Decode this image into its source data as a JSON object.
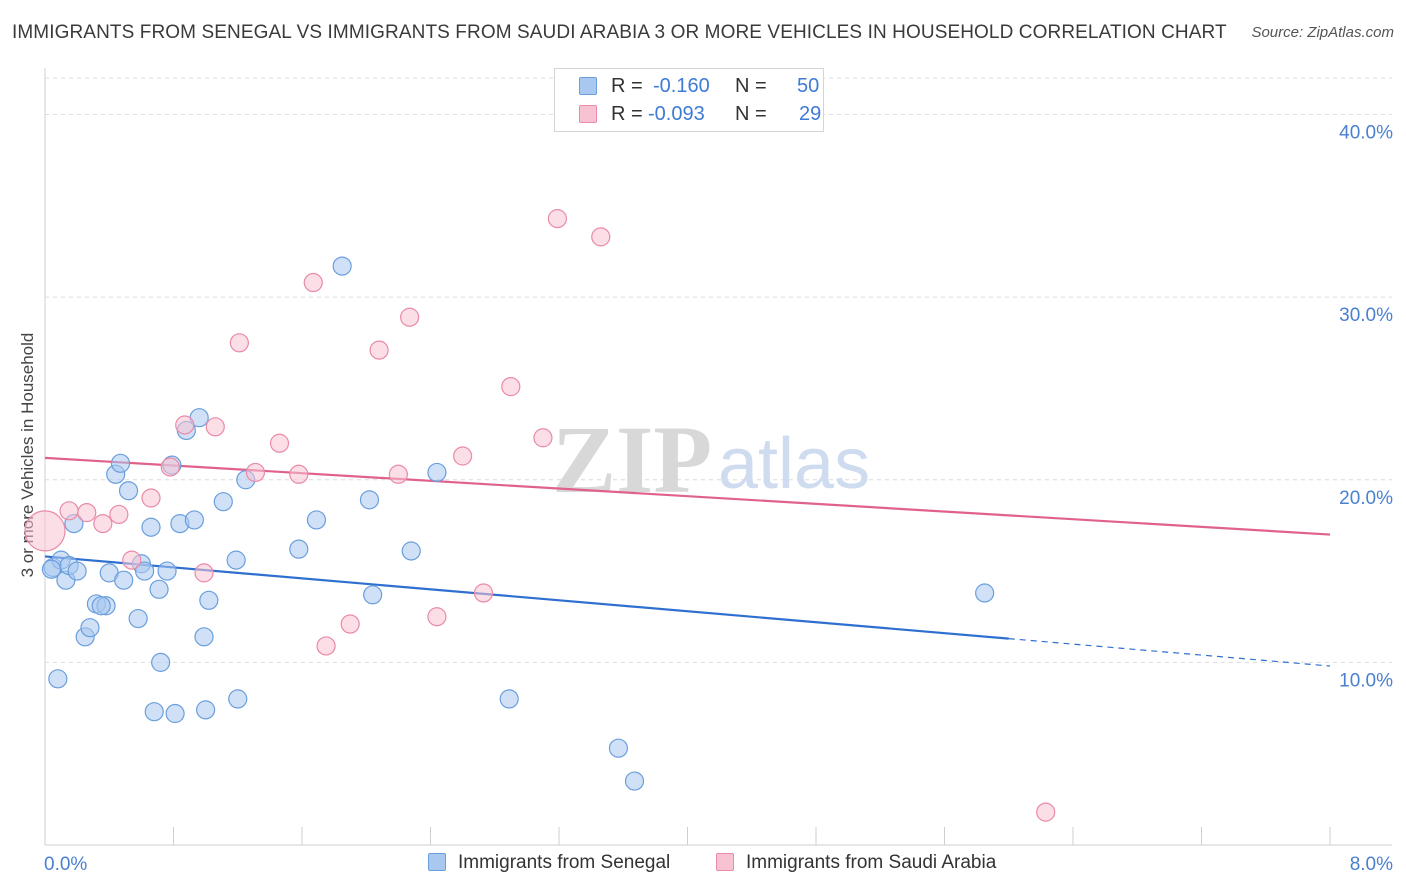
{
  "header": {
    "title": "IMMIGRANTS FROM SENEGAL VS IMMIGRANTS FROM SAUDI ARABIA 3 OR MORE VEHICLES IN HOUSEHOLD CORRELATION CHART",
    "source": "Source: ZipAtlas.com"
  },
  "legend": {
    "rows": [
      {
        "r_label": "R =",
        "r_value": "-0.160",
        "n_label": "N =",
        "n_value": "50"
      },
      {
        "r_label": "R =",
        "r_value": "-0.093",
        "n_label": "N =",
        "n_value": "29"
      }
    ]
  },
  "watermark": {
    "zip": "ZIP",
    "atlas": "atlas"
  },
  "chart_data": {
    "type": "scatter",
    "title": "IMMIGRANTS FROM SENEGAL VS IMMIGRANTS FROM SAUDI ARABIA 3 OR MORE VEHICLES IN HOUSEHOLD CORRELATION CHART",
    "xlabel": "",
    "ylabel": "3 or more Vehicles in Household",
    "xlim": [
      0,
      8
    ],
    "ylim": [
      0,
      42
    ],
    "x_tick_labels": [
      "0.0%",
      "8.0%"
    ],
    "y_ticks": [
      10,
      20,
      30,
      40
    ],
    "y_tick_labels": [
      "10.0%",
      "20.0%",
      "30.0%",
      "40.0%"
    ],
    "grid": true,
    "legend_position": "bottom",
    "series": [
      {
        "name": "Immigrants from Senegal",
        "color": "#a9c8f0",
        "stroke": "#6a9fdc",
        "line_color": "#2f6fd0",
        "trend": {
          "x": [
            0,
            6.0
          ],
          "y": [
            15.8,
            11.3
          ]
        },
        "trend_dashed": {
          "x": [
            6.0,
            8.0
          ],
          "y": [
            11.3,
            9.8
          ]
        },
        "points": [
          {
            "x": 0.05,
            "y": 15.2
          },
          {
            "x": 0.1,
            "y": 15.6
          },
          {
            "x": 0.13,
            "y": 14.5
          },
          {
            "x": 0.15,
            "y": 15.3
          },
          {
            "x": 0.2,
            "y": 15.0
          },
          {
            "x": 0.18,
            "y": 17.6
          },
          {
            "x": 0.08,
            "y": 9.1
          },
          {
            "x": 0.25,
            "y": 11.4
          },
          {
            "x": 0.28,
            "y": 11.9
          },
          {
            "x": 0.32,
            "y": 13.2
          },
          {
            "x": 0.38,
            "y": 13.1
          },
          {
            "x": 0.4,
            "y": 14.9
          },
          {
            "x": 0.44,
            "y": 20.3
          },
          {
            "x": 0.47,
            "y": 20.9
          },
          {
            "x": 0.49,
            "y": 14.5
          },
          {
            "x": 0.52,
            "y": 19.4
          },
          {
            "x": 0.58,
            "y": 12.4
          },
          {
            "x": 0.6,
            "y": 15.4
          },
          {
            "x": 0.62,
            "y": 15.0
          },
          {
            "x": 0.66,
            "y": 17.4
          },
          {
            "x": 0.68,
            "y": 7.3
          },
          {
            "x": 0.71,
            "y": 14.0
          },
          {
            "x": 0.72,
            "y": 10.0
          },
          {
            "x": 0.76,
            "y": 15.0
          },
          {
            "x": 0.79,
            "y": 20.8
          },
          {
            "x": 0.81,
            "y": 7.2
          },
          {
            "x": 0.84,
            "y": 17.6
          },
          {
            "x": 0.88,
            "y": 22.7
          },
          {
            "x": 0.93,
            "y": 17.8
          },
          {
            "x": 0.96,
            "y": 23.4
          },
          {
            "x": 0.99,
            "y": 11.4
          },
          {
            "x": 1.0,
            "y": 7.4
          },
          {
            "x": 1.02,
            "y": 13.4
          },
          {
            "x": 1.11,
            "y": 18.8
          },
          {
            "x": 1.19,
            "y": 15.6
          },
          {
            "x": 1.2,
            "y": 8.0
          },
          {
            "x": 1.25,
            "y": 20.0
          },
          {
            "x": 1.58,
            "y": 16.2
          },
          {
            "x": 1.69,
            "y": 17.8
          },
          {
            "x": 1.85,
            "y": 31.7
          },
          {
            "x": 2.02,
            "y": 18.9
          },
          {
            "x": 2.04,
            "y": 13.7
          },
          {
            "x": 2.28,
            "y": 16.1
          },
          {
            "x": 2.44,
            "y": 20.4
          },
          {
            "x": 2.89,
            "y": 8.0
          },
          {
            "x": 3.57,
            "y": 5.3
          },
          {
            "x": 3.67,
            "y": 3.5
          },
          {
            "x": 5.85,
            "y": 13.8
          },
          {
            "x": 0.04,
            "y": 15.1
          },
          {
            "x": 0.35,
            "y": 13.1
          }
        ]
      },
      {
        "name": "Immigrants from Saudi Arabia",
        "color": "#f7c3d2",
        "stroke": "#e98aa8",
        "line_color": "#e0628c",
        "trend": {
          "x": [
            0,
            8.0
          ],
          "y": [
            21.2,
            17.0
          ]
        },
        "points": [
          {
            "x": 0.0,
            "y": 17.2,
            "big": true
          },
          {
            "x": 0.15,
            "y": 18.3
          },
          {
            "x": 0.26,
            "y": 18.2
          },
          {
            "x": 0.36,
            "y": 17.6
          },
          {
            "x": 0.46,
            "y": 18.1
          },
          {
            "x": 0.54,
            "y": 15.6
          },
          {
            "x": 0.66,
            "y": 19.0
          },
          {
            "x": 0.78,
            "y": 20.7
          },
          {
            "x": 0.87,
            "y": 23.0
          },
          {
            "x": 0.99,
            "y": 14.9
          },
          {
            "x": 1.06,
            "y": 22.9
          },
          {
            "x": 1.21,
            "y": 27.5
          },
          {
            "x": 1.31,
            "y": 20.4
          },
          {
            "x": 1.46,
            "y": 22.0
          },
          {
            "x": 1.58,
            "y": 20.3
          },
          {
            "x": 1.67,
            "y": 30.8
          },
          {
            "x": 1.75,
            "y": 10.9
          },
          {
            "x": 1.9,
            "y": 12.1
          },
          {
            "x": 2.08,
            "y": 27.1
          },
          {
            "x": 2.2,
            "y": 20.3
          },
          {
            "x": 2.27,
            "y": 28.9
          },
          {
            "x": 2.44,
            "y": 12.5
          },
          {
            "x": 2.6,
            "y": 21.3
          },
          {
            "x": 2.73,
            "y": 13.8
          },
          {
            "x": 2.9,
            "y": 25.1
          },
          {
            "x": 3.1,
            "y": 22.3
          },
          {
            "x": 3.19,
            "y": 34.3
          },
          {
            "x": 3.46,
            "y": 33.3
          },
          {
            "x": 6.23,
            "y": 1.8
          }
        ]
      }
    ]
  }
}
